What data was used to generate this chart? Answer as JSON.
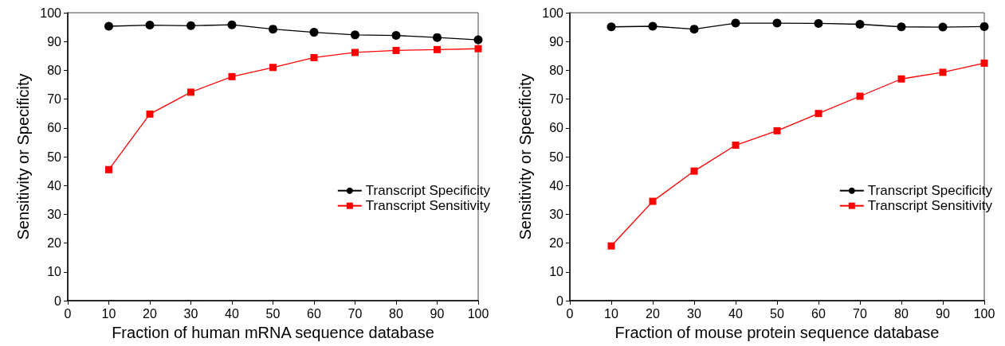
{
  "chart_data": [
    {
      "type": "line",
      "xlabel": "Fraction of human mRNA sequence database",
      "ylabel": "Sensitivity or Specificity",
      "x": [
        10,
        20,
        30,
        40,
        50,
        60,
        70,
        80,
        90,
        100
      ],
      "xlim": [
        0,
        100
      ],
      "xticks": [
        0,
        10,
        20,
        30,
        40,
        50,
        60,
        70,
        80,
        90,
        100
      ],
      "ylim": [
        0,
        100
      ],
      "yticks": [
        0,
        10,
        20,
        30,
        40,
        50,
        60,
        70,
        80,
        90,
        100
      ],
      "grid": false,
      "legend": "right",
      "line_style": "solid",
      "series": [
        {
          "name": "Transcript Specificity",
          "color": "#000000",
          "marker": "circle",
          "values": [
            95.3,
            95.7,
            95.5,
            95.8,
            94.3,
            93.2,
            92.3,
            92.1,
            91.4,
            90.6
          ]
        },
        {
          "name": "Transcript Sensitivity",
          "color": "#ff0000",
          "marker": "square",
          "values": [
            45.5,
            64.8,
            72.4,
            77.8,
            81.0,
            84.4,
            86.2,
            86.9,
            87.2,
            87.5
          ]
        }
      ]
    },
    {
      "type": "line",
      "xlabel": "Fraction of mouse protein sequence database",
      "ylabel": "Sensitivity or Specificity",
      "x": [
        10,
        20,
        30,
        40,
        50,
        60,
        70,
        80,
        90,
        100
      ],
      "xlim": [
        0,
        100
      ],
      "xticks": [
        0,
        10,
        20,
        30,
        40,
        50,
        60,
        70,
        80,
        90,
        100
      ],
      "ylim": [
        0,
        100
      ],
      "yticks": [
        0,
        10,
        20,
        30,
        40,
        50,
        60,
        70,
        80,
        90,
        100
      ],
      "grid": false,
      "legend": "right",
      "line_style": "solid",
      "series": [
        {
          "name": "Transcript Specificity",
          "color": "#000000",
          "marker": "circle",
          "values": [
            95.1,
            95.3,
            94.3,
            96.4,
            96.4,
            96.3,
            96.0,
            95.1,
            95.0,
            95.2
          ]
        },
        {
          "name": "Transcript Sensitivity",
          "color": "#ff0000",
          "marker": "square",
          "values": [
            19,
            34.5,
            45,
            54,
            59,
            65,
            71,
            77,
            79.3,
            82.5
          ]
        }
      ]
    }
  ]
}
